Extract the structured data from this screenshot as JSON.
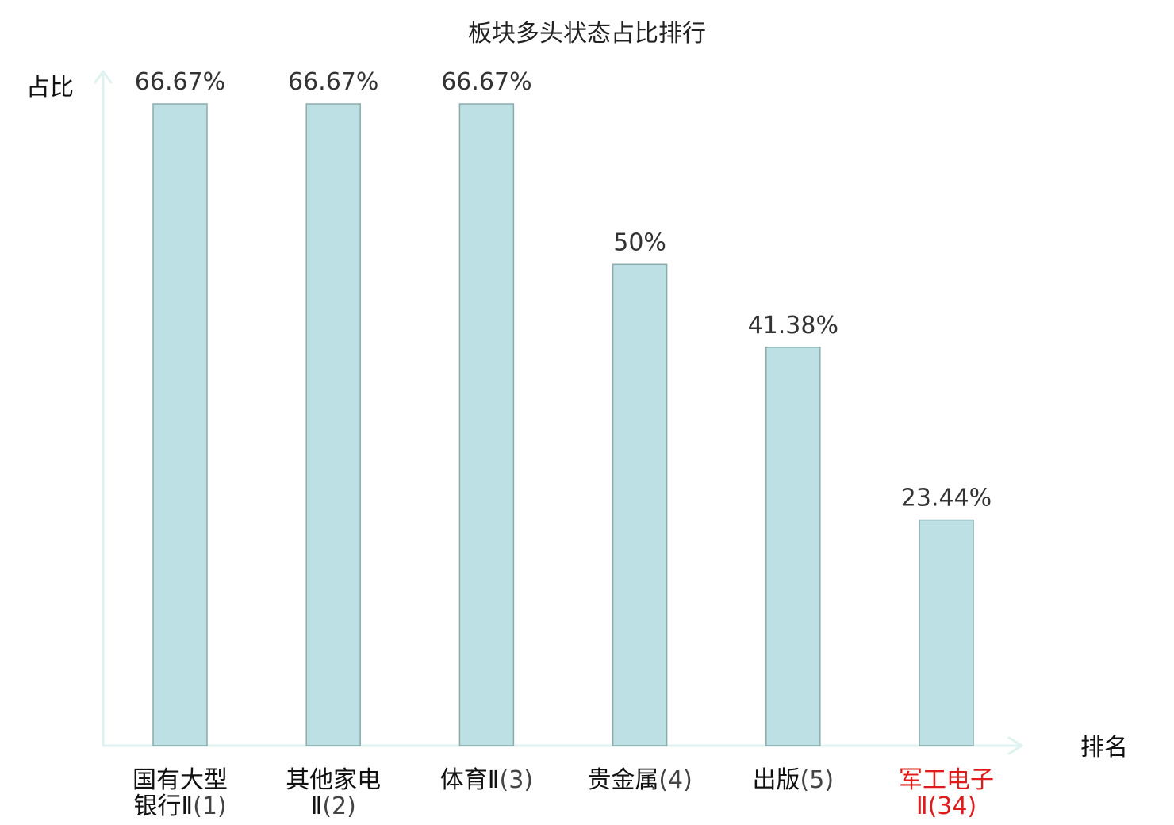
{
  "chart_data": {
    "type": "bar",
    "title": "板块多头状态占比排行",
    "ylabel": "占比",
    "xlabel": "排名",
    "ylim": [
      0,
      70
    ],
    "grid": false,
    "categories": [
      {
        "name": "国有大型银行Ⅱ",
        "lines": [
          "国有大型",
          "银行Ⅱ"
        ],
        "rank": "(1)",
        "highlight": false
      },
      {
        "name": "其他家电Ⅱ",
        "lines": [
          "其他家电",
          "Ⅱ"
        ],
        "rank": "(2)",
        "highlight": false
      },
      {
        "name": "体育Ⅱ",
        "lines": [
          "体育Ⅱ"
        ],
        "rank": "(3)",
        "highlight": false
      },
      {
        "name": "贵金属",
        "lines": [
          "贵金属"
        ],
        "rank": "(4)",
        "highlight": false
      },
      {
        "name": "出版",
        "lines": [
          "出版"
        ],
        "rank": "(5)",
        "highlight": false
      },
      {
        "name": "军工电子Ⅱ",
        "lines": [
          "军工电子",
          "Ⅱ"
        ],
        "rank": "(34)",
        "highlight": true
      }
    ],
    "values": [
      66.67,
      66.67,
      66.67,
      50,
      41.38,
      23.44
    ],
    "value_labels": [
      "66.67%",
      "66.67%",
      "66.67%",
      "50%",
      "41.38%",
      "23.44%"
    ],
    "colors": {
      "bar_fill": "#bce0e3",
      "bar_stroke": "#8aabab",
      "axis": "#dff2ef",
      "highlight_text": "#e01b1b"
    }
  }
}
